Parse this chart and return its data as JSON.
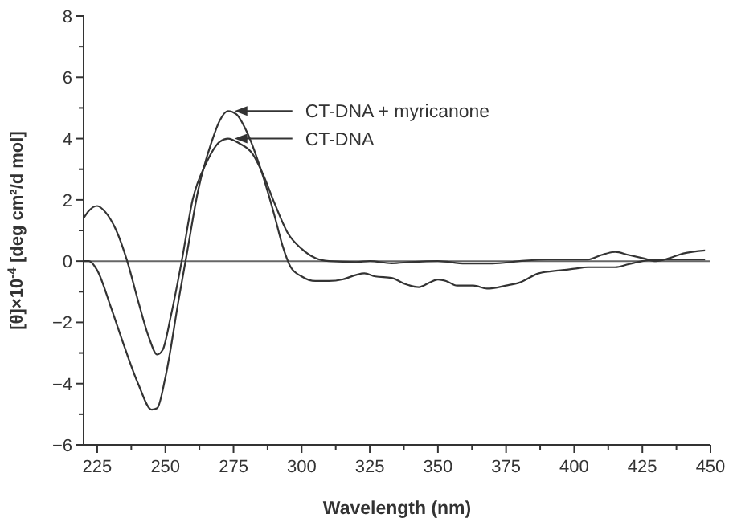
{
  "chart_data": {
    "type": "line",
    "xlabel": "Wavelength (nm)",
    "ylabel": "[θ]×10$^{-4}$ [deg cm²/d mol]",
    "xlim": [
      220,
      450
    ],
    "ylim": [
      -6,
      8
    ],
    "xticks": [
      225,
      {
        "value": 237.5,
        "label": null
      },
      250,
      {
        "value": 262.5,
        "label": null
      },
      275,
      {
        "value": 287.5,
        "label": null
      },
      300,
      {
        "value": 312.5,
        "label": null
      },
      325,
      {
        "value": 337.5,
        "label": null
      },
      350,
      {
        "value": 362.5,
        "label": null
      },
      375,
      {
        "value": 387.5,
        "label": null
      },
      400,
      {
        "value": 412.5,
        "label": null
      },
      425,
      {
        "value": 437.5,
        "label": null
      },
      450
    ],
    "yticks": [
      -6,
      {
        "value": -5,
        "label": null
      },
      -4,
      {
        "value": -3,
        "label": null
      },
      -2,
      {
        "value": -1,
        "label": null
      },
      0,
      {
        "value": 1,
        "label": null
      },
      2,
      {
        "value": 3,
        "label": null
      },
      4,
      {
        "value": 5,
        "label": null
      },
      6,
      {
        "value": 7,
        "label": null
      },
      8
    ],
    "grid": false,
    "legend": "top",
    "line_style": "solid",
    "ref_lines": [
      {
        "axis": "y",
        "value": 0,
        "color": "#666666"
      }
    ],
    "series": [
      {
        "name": "CT-DNA + myricanone",
        "color": "#333333",
        "x": [
          220,
          222,
          225,
          230,
          235,
          240,
          245,
          247,
          250,
          255,
          258,
          262,
          267,
          270,
          273,
          276,
          280,
          285,
          290,
          293,
          296,
          300,
          305,
          310,
          315,
          320,
          323,
          327,
          333,
          338,
          343,
          347,
          350,
          353,
          357,
          363,
          368,
          375,
          380,
          387,
          395,
          400,
          405,
          415,
          420,
          425,
          430,
          440,
          448
        ],
        "values": [
          0,
          0,
          -0.3,
          -1.5,
          -2.8,
          -4.0,
          -4.85,
          -4.8,
          -3.8,
          -1.2,
          0.3,
          2.3,
          3.9,
          4.6,
          4.9,
          4.8,
          4.2,
          3.0,
          1.5,
          0.5,
          -0.2,
          -0.5,
          -0.65,
          -0.65,
          -0.6,
          -0.45,
          -0.4,
          -0.5,
          -0.55,
          -0.75,
          -0.85,
          -0.7,
          -0.6,
          -0.65,
          -0.8,
          -0.8,
          -0.9,
          -0.8,
          -0.7,
          -0.4,
          -0.3,
          -0.25,
          -0.2,
          -0.2,
          -0.1,
          0,
          0.05,
          0.05,
          0.05
        ]
      },
      {
        "name": "CT-DNA",
        "color": "#333333",
        "x": [
          220,
          222,
          225,
          228,
          232,
          236,
          240,
          244,
          247,
          249,
          252,
          256,
          260,
          265,
          270,
          273,
          277,
          282,
          286,
          290,
          295,
          300,
          305,
          310,
          320,
          325,
          333,
          340,
          350,
          360,
          370,
          380,
          390,
          405,
          410,
          415,
          420,
          425,
          430,
          435,
          440,
          448
        ],
        "values": [
          1.4,
          1.65,
          1.8,
          1.6,
          1.0,
          0,
          -1.3,
          -2.5,
          -3.05,
          -2.9,
          -1.8,
          0,
          2.0,
          3.2,
          3.9,
          4.0,
          3.85,
          3.5,
          2.8,
          1.9,
          0.9,
          0.4,
          0.1,
          0,
          -0.03,
          0,
          -0.07,
          -0.03,
          0,
          -0.08,
          -0.08,
          0,
          0.05,
          0.05,
          0.2,
          0.3,
          0.2,
          0.1,
          0,
          0.1,
          0.25,
          0.35
        ]
      }
    ]
  }
}
